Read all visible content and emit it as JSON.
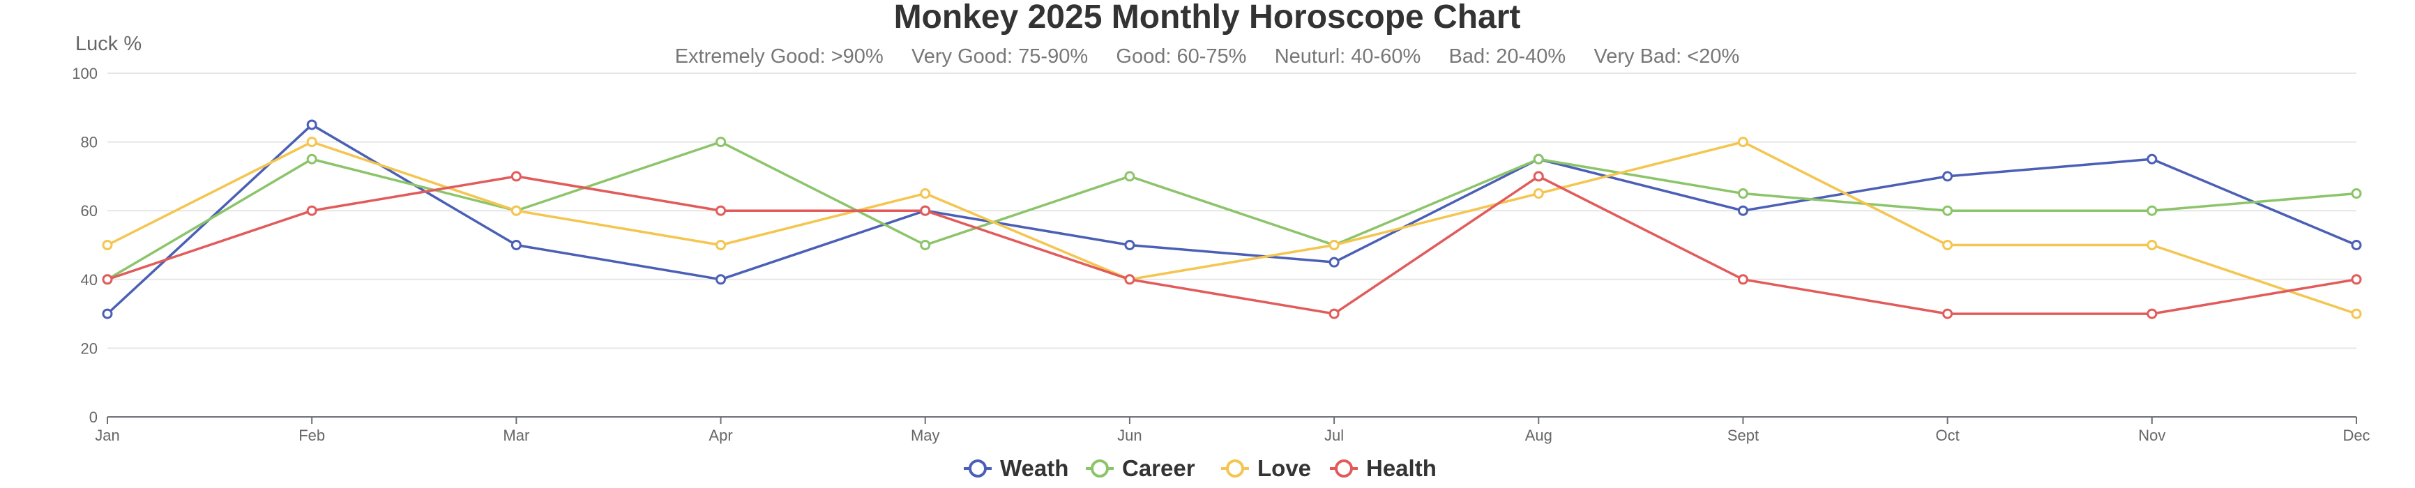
{
  "chart_data": {
    "type": "line",
    "title": "Monkey 2025 Monthly Horoscope Chart",
    "subtitle": "Extremely Good: >90%     Very Good: 75-90%     Good: 60-75%     Neuturl: 40-60%     Bad: 20-40%     Very Bad: <20%",
    "ylabel": "Luck %",
    "ylim": [
      0,
      100
    ],
    "yticks": [
      "0",
      "20",
      "40",
      "60",
      "80",
      "100"
    ],
    "categories": [
      "Jan",
      "Feb",
      "Mar",
      "Apr",
      "May",
      "Jun",
      "Jul",
      "Aug",
      "Sept",
      "Oct",
      "Nov",
      "Dec"
    ],
    "grid": true,
    "legend_position": "bottom-center",
    "series": [
      {
        "name": "Weath",
        "color": "#4a5fb5",
        "values": [
          30,
          85,
          50,
          40,
          60,
          50,
          45,
          75,
          60,
          70,
          75,
          50
        ]
      },
      {
        "name": "Career",
        "color": "#8cc46a",
        "values": [
          40,
          75,
          60,
          80,
          50,
          70,
          50,
          75,
          65,
          60,
          60,
          65
        ]
      },
      {
        "name": "Love",
        "color": "#f4c54f",
        "values": [
          50,
          80,
          60,
          50,
          65,
          40,
          50,
          65,
          80,
          50,
          50,
          30
        ]
      },
      {
        "name": "Health",
        "color": "#e25b5b",
        "values": [
          40,
          60,
          70,
          60,
          60,
          40,
          30,
          70,
          40,
          30,
          30,
          40
        ]
      }
    ]
  }
}
